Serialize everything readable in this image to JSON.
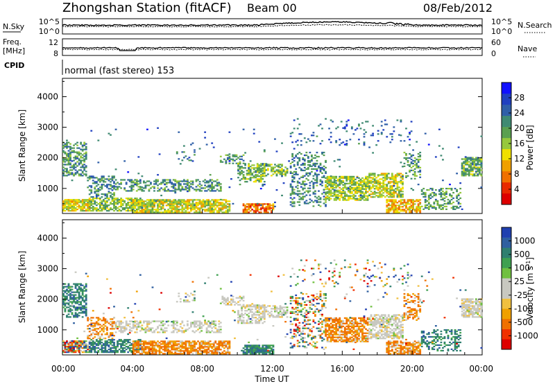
{
  "header": {
    "title": "Zhongshan Station (fitACF)",
    "beam": "Beam 00",
    "date": "08/Feb/2012"
  },
  "status_panels": {
    "nsky_label": "N.Sky",
    "nsearch_label": "N.Search",
    "nsky_ticks": [
      "10^5",
      "10^0"
    ],
    "nsearch_ticks": [
      "10^5",
      "10^0"
    ],
    "freq_label_top": "Freq.",
    "freq_label_unit": "[MHz]",
    "freq_ticks": [
      "12",
      "8"
    ],
    "nave_label": "Nave",
    "nave_ticks": [
      "60",
      "0"
    ],
    "cpid_label": "CPID",
    "mode_text": "normal (fast stereo) 153"
  },
  "time_axis": {
    "label": "Time UT",
    "ticks": [
      "00:00",
      "04:00",
      "08:00",
      "12:00",
      "16:00",
      "20:00",
      "00:00"
    ]
  },
  "chart_data": [
    {
      "type": "heatmap",
      "ylabel": "Slant Range [km]",
      "y_ticks": [
        1000,
        2000,
        3000,
        4000
      ],
      "ylim": [
        180,
        4600
      ],
      "xlim_hours": [
        0,
        24
      ],
      "colorbar": {
        "label": "Power [dB]",
        "ticks": [
          "4",
          "8",
          "12",
          "16",
          "20",
          "24",
          "28"
        ],
        "colors": [
          "#1010ff",
          "#2040c0",
          "#2f5fa8",
          "#3f8a72",
          "#5aa050",
          "#96c83c",
          "#f0e000",
          "#f0a000",
          "#f07000",
          "#e82a00",
          "#dd0000"
        ]
      }
    },
    {
      "type": "heatmap",
      "ylabel": "Slant Range [km]",
      "y_ticks": [
        1000,
        2000,
        3000,
        4000
      ],
      "ylim": [
        180,
        4600
      ],
      "xlim_hours": [
        0,
        24
      ],
      "colorbar": {
        "label": "Velocity [m s^-1]",
        "ticks": [
          "1000",
          "500",
          "100",
          "25",
          "-25",
          "-100",
          "-500",
          "-1000"
        ],
        "colors": [
          "#2040b0",
          "#2f5fa0",
          "#2f7f6f",
          "#3fa050",
          "#70c040",
          "#c8c8c0",
          "#c8c8c0",
          "#f0c040",
          "#f0a000",
          "#f07000",
          "#f03000",
          "#dd0000"
        ]
      }
    }
  ]
}
